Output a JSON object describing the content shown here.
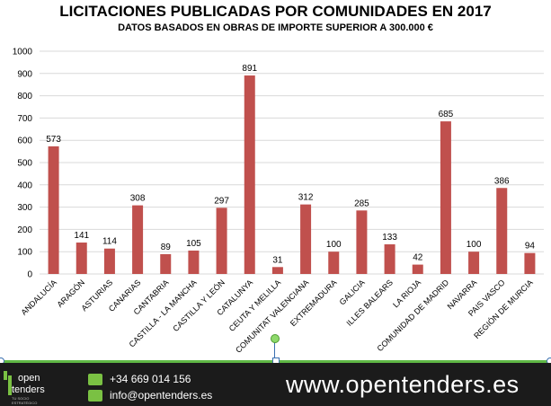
{
  "chart_data": {
    "type": "bar",
    "title": "LICITACIONES PUBLICADAS POR COMUNIDADES EN 2017",
    "subtitle": "DATOS BASADOS EN OBRAS DE IMPORTE SUPERIOR A 300.000 €",
    "xlabel": "",
    "ylabel": "",
    "ylim": [
      0,
      1000
    ],
    "yticks": [
      0,
      100,
      200,
      300,
      400,
      500,
      600,
      700,
      800,
      900,
      1000
    ],
    "grid": true,
    "legend": "none",
    "bar_color": "#c0504d",
    "categories": [
      "ANDALUCÍA",
      "ARAGÓN",
      "ASTURIAS",
      "CANARIAS",
      "CANTABRIA",
      "CASTILLA - LA MANCHA",
      "CASTILLA Y LEÓN",
      "CATALUNYA",
      "CEUTA Y MELILLA",
      "COMUNITAT VALENCIANA",
      "EXTREMADURA",
      "GALICIA",
      "ILLES BALEARS",
      "LA RIOJA",
      "COMUNIDAD DE MADRID",
      "NAVARRA",
      "PAIS VASCO",
      "REGIÓN DE MURCIA"
    ],
    "values": [
      573,
      141,
      114,
      308,
      89,
      105,
      297,
      891,
      31,
      312,
      100,
      285,
      133,
      42,
      685,
      100,
      386,
      94
    ]
  },
  "footer": {
    "logo_line1": "open",
    "logo_line2": "tenders",
    "logo_tagline": "TU SOCIO ESTRATÉGICO",
    "phone": "+34 669 014 156",
    "email": "info@opentenders.es",
    "website": "www.opentenders.es",
    "accent_color": "#7ac143"
  }
}
